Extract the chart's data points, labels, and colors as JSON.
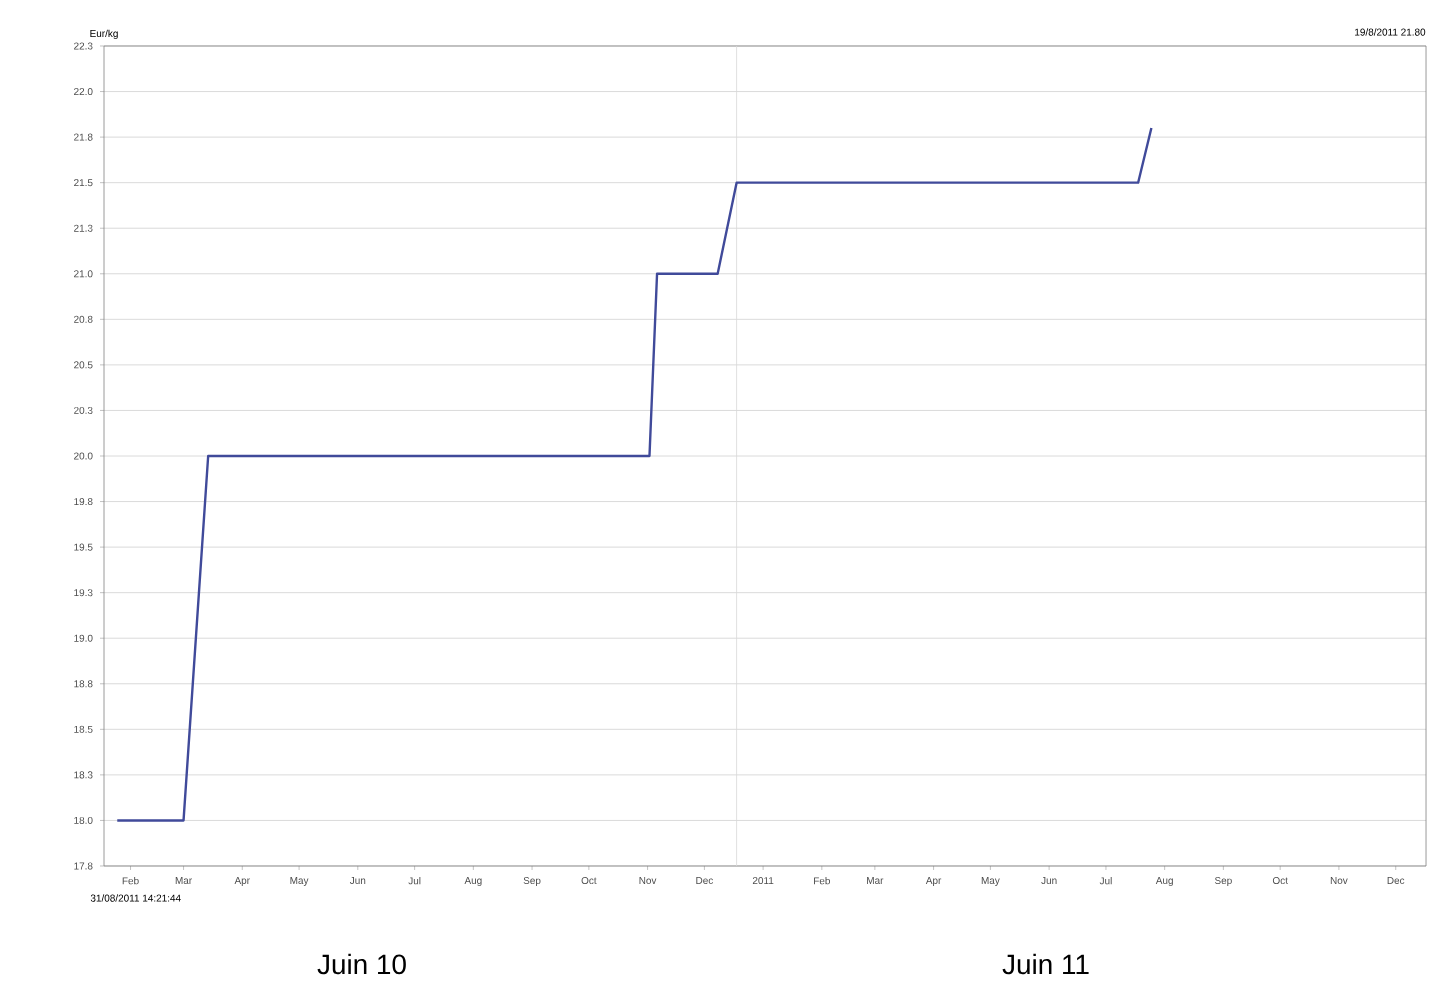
{
  "chart_data": {
    "type": "line",
    "ylabel": "Eur/kg",
    "x": [
      "2010-02-08",
      "2010-03-15",
      "2010-03-28",
      "2010-11-16",
      "2010-11-20",
      "2010-12-22",
      "2011-01-01",
      "2011-08-01",
      "2011-08-08"
    ],
    "series": [
      {
        "color": "#404a9a",
        "values": [
          18.0,
          18.0,
          20.0,
          20.0,
          21.0,
          21.0,
          21.5,
          21.5,
          21.8
        ]
      }
    ],
    "xlim": [
      "2010-02-01",
      "2011-12-31"
    ],
    "xticks": [
      {
        "value": "2010-02-15",
        "label": "Feb"
      },
      {
        "value": "2010-03-15",
        "label": "Mar"
      },
      {
        "value": "2010-04-15",
        "label": "Apr"
      },
      {
        "value": "2010-05-15",
        "label": "May"
      },
      {
        "value": "2010-06-15",
        "label": "Jun"
      },
      {
        "value": "2010-07-15",
        "label": "Jul"
      },
      {
        "value": "2010-08-15",
        "label": "Aug"
      },
      {
        "value": "2010-09-15",
        "label": "Sep"
      },
      {
        "value": "2010-10-15",
        "label": "Oct"
      },
      {
        "value": "2010-11-15",
        "label": "Nov"
      },
      {
        "value": "2010-12-15",
        "label": "Dec"
      },
      {
        "value": "2011-01-15",
        "label": "2011"
      },
      {
        "value": "2011-02-15",
        "label": "Feb"
      },
      {
        "value": "2011-03-15",
        "label": "Mar"
      },
      {
        "value": "2011-04-15",
        "label": "Apr"
      },
      {
        "value": "2011-05-15",
        "label": "May"
      },
      {
        "value": "2011-06-15",
        "label": "Jun"
      },
      {
        "value": "2011-07-15",
        "label": "Jul"
      },
      {
        "value": "2011-08-15",
        "label": "Aug"
      },
      {
        "value": "2011-09-15",
        "label": "Sep"
      },
      {
        "value": "2011-10-15",
        "label": "Oct"
      },
      {
        "value": "2011-11-15",
        "label": "Nov"
      },
      {
        "value": "2011-12-15",
        "label": "Dec"
      }
    ],
    "ylim": [
      17.75,
      22.25
    ],
    "yticks": [
      {
        "value": 17.75,
        "label": "17.8"
      },
      {
        "value": 18,
        "label": "18.0"
      },
      {
        "value": 18.25,
        "label": "18.3"
      },
      18.5,
      {
        "value": 18.75,
        "label": "18.8"
      },
      {
        "value": 19,
        "label": "19.0"
      },
      {
        "value": 19.25,
        "label": "19.3"
      },
      19.5,
      {
        "value": 19.75,
        "label": "19.8"
      },
      {
        "value": 20,
        "label": "20.0"
      },
      {
        "value": 20.25,
        "label": "20.3"
      },
      20.5,
      {
        "value": 20.75,
        "label": "20.8"
      },
      {
        "value": 21,
        "label": "21.0"
      },
      {
        "value": 21.25,
        "label": "21.3"
      },
      21.5,
      {
        "value": 21.75,
        "label": "21.8"
      },
      {
        "value": 22,
        "label": "22.0"
      },
      {
        "value": 22.25,
        "label": "22.3"
      }
    ],
    "grid": "y",
    "ref_lines": [
      {
        "axis": "x",
        "value": "2011-01-01",
        "color": "#d8d8d8"
      }
    ],
    "annotations": [
      "19/8/2011 21.80",
      "31/08/2011 14:21:44",
      "Juin 10",
      "Juin 11"
    ]
  }
}
